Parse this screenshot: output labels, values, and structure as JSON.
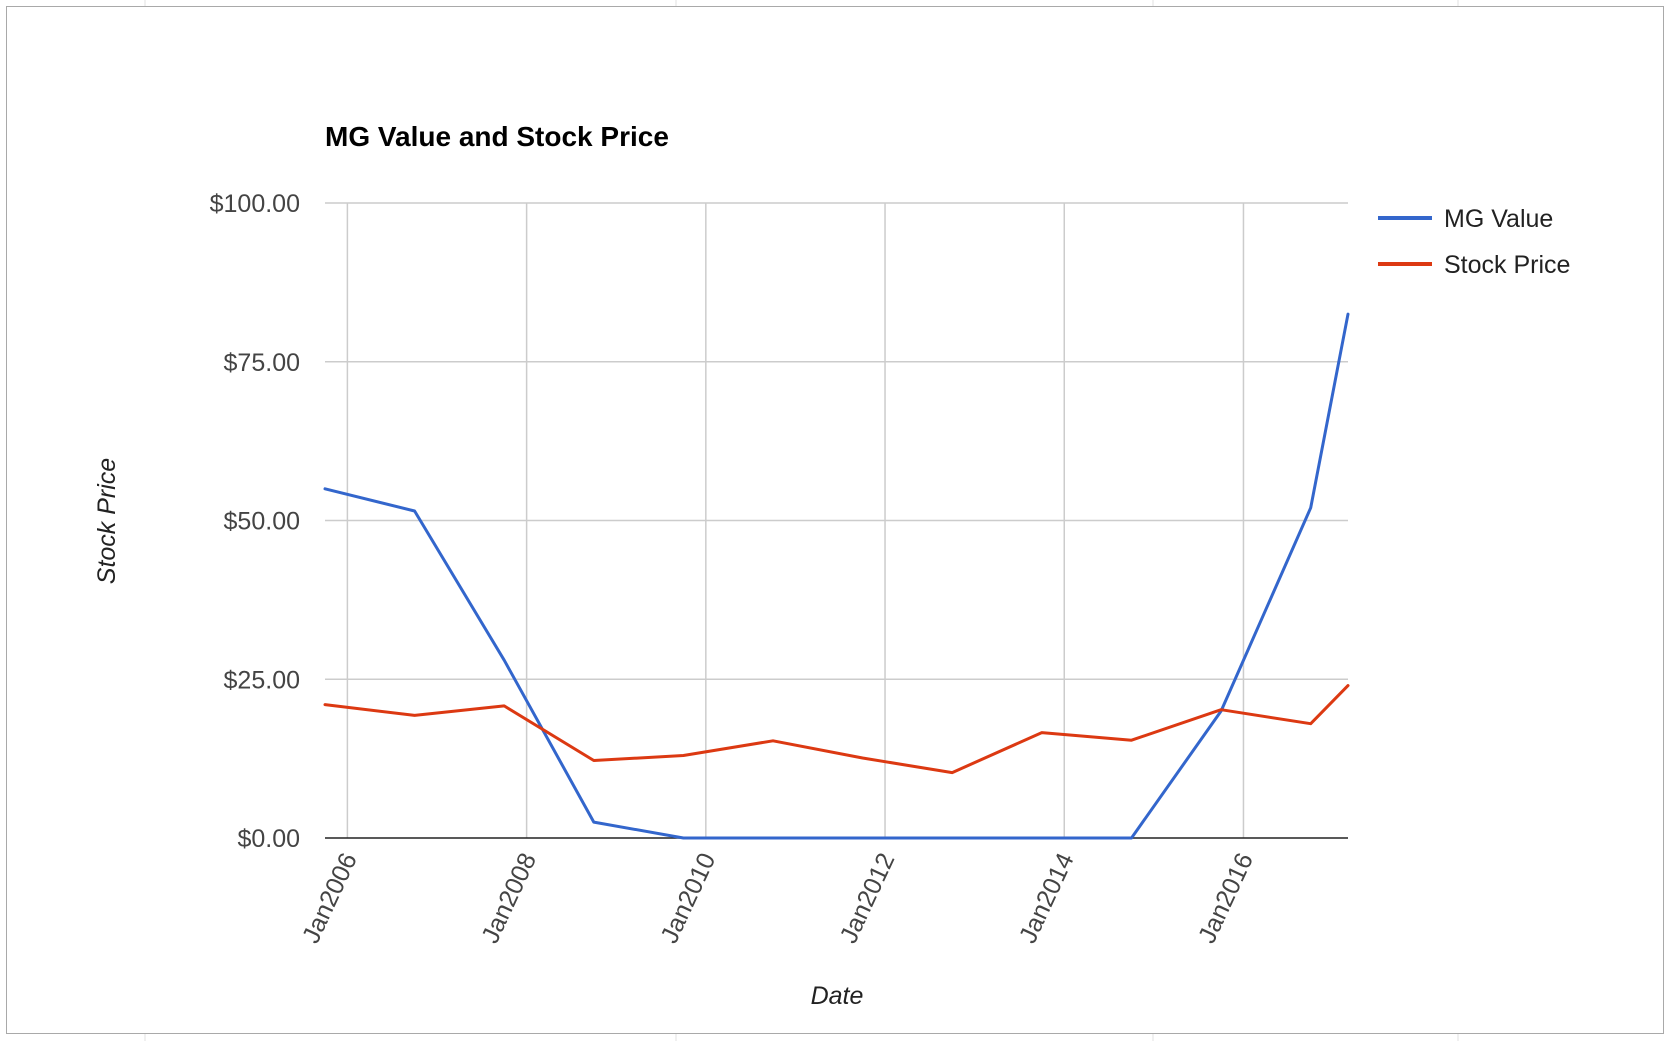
{
  "chart_data": {
    "type": "line",
    "title": "MG Value and Stock Price",
    "xlabel": "Date",
    "ylabel": "Stock Price",
    "x_ticks": [
      "Jan2006",
      "Jan2008",
      "Jan2010",
      "Jan2012",
      "Jan2014",
      "Jan2016"
    ],
    "x_tick_dates": [
      "2006-01",
      "2008-01",
      "2010-01",
      "2012-01",
      "2014-01",
      "2016-01"
    ],
    "x_range": [
      "2005-10",
      "2017-03"
    ],
    "y_ticks": [
      "$0.00",
      "$25.00",
      "$50.00",
      "$75.00",
      "$100.00"
    ],
    "y_tick_values": [
      0,
      25,
      50,
      75,
      100
    ],
    "ylim": [
      0,
      100
    ],
    "grid": true,
    "legend_position": "top-right",
    "series": [
      {
        "name": "MG Value",
        "color": "#3366cc",
        "points": [
          [
            "2005-10",
            55.0
          ],
          [
            "2006-10",
            51.5
          ],
          [
            "2007-10",
            28.0
          ],
          [
            "2008-10",
            2.5
          ],
          [
            "2009-10",
            0.0
          ],
          [
            "2010-10",
            0.0
          ],
          [
            "2011-10",
            0.0
          ],
          [
            "2012-10",
            0.0
          ],
          [
            "2013-10",
            0.0
          ],
          [
            "2014-10",
            0.0
          ],
          [
            "2015-10",
            20.0
          ],
          [
            "2016-10",
            52.0
          ],
          [
            "2017-03",
            82.5
          ]
        ]
      },
      {
        "name": "Stock Price",
        "color": "#dc3912",
        "points": [
          [
            "2005-10",
            21.0
          ],
          [
            "2006-10",
            19.3
          ],
          [
            "2007-10",
            20.8
          ],
          [
            "2008-10",
            12.2
          ],
          [
            "2009-10",
            13.0
          ],
          [
            "2010-10",
            15.3
          ],
          [
            "2011-10",
            12.6
          ],
          [
            "2012-10",
            10.3
          ],
          [
            "2013-10",
            16.6
          ],
          [
            "2014-10",
            15.4
          ],
          [
            "2015-10",
            20.2
          ],
          [
            "2016-10",
            18.0
          ],
          [
            "2017-03",
            24.0
          ]
        ]
      }
    ]
  }
}
